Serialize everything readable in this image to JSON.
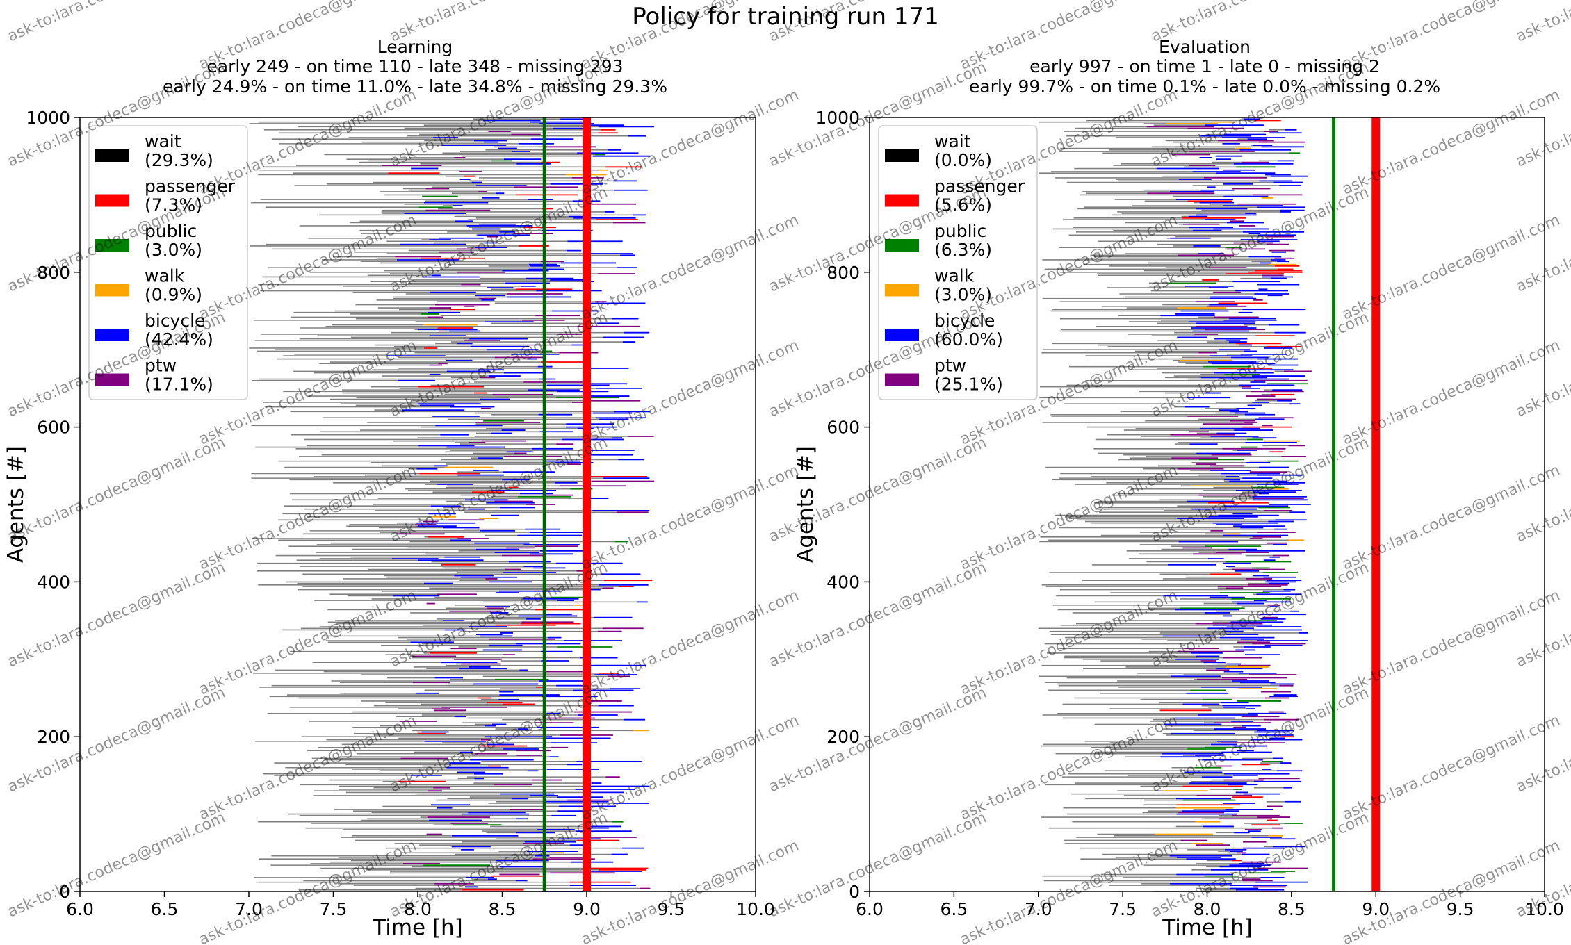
{
  "figure": {
    "title": "Policy for training run 171",
    "watermark": "ask-to:lara.codeca@gmail.com"
  },
  "chart_data": [
    {
      "type": "bar",
      "orientation": "horizontal-ranges",
      "title": "Learning",
      "subtitle_counts": "early 249 - on time 110 - late 348 - missing 293",
      "subtitle_percent": "early 24.9% - on time 11.0% - late 34.8% - missing 29.3%",
      "xlabel": "Time [h]",
      "ylabel": "Agents [#]",
      "xlim": [
        6.0,
        10.0
      ],
      "ylim": [
        0,
        1000
      ],
      "xticks": [
        "6.0",
        "6.5",
        "7.0",
        "7.5",
        "8.0",
        "8.5",
        "9.0",
        "9.5",
        "10.0"
      ],
      "yticks": [
        "0",
        "200",
        "400",
        "600",
        "800",
        "1000"
      ],
      "vertical_lines": [
        {
          "x": 8.75,
          "color": "#006400"
        },
        {
          "x": 9.0,
          "color": "#ff0000"
        }
      ],
      "legend_position": "top-left",
      "legend": [
        {
          "label": "wait",
          "pct": "(29.3%)",
          "color": "#000000"
        },
        {
          "label": "passenger",
          "pct": "(7.3%)",
          "color": "#ff0000"
        },
        {
          "label": "public",
          "pct": "(3.0%)",
          "color": "#008000"
        },
        {
          "label": "walk",
          "pct": "(0.9%)",
          "color": "#ffa500"
        },
        {
          "label": "bicycle",
          "pct": "(42.4%)",
          "color": "#0000ff"
        },
        {
          "label": "ptw",
          "pct": "(17.1%)",
          "color": "#800080"
        }
      ],
      "agent_trips": {
        "agents": 1000,
        "wait_color": "#808080",
        "start_range_h": [
          7.0,
          8.5
        ],
        "end_range_h": [
          8.1,
          9.4
        ],
        "mode_share": {
          "passenger": 0.073,
          "public": 0.03,
          "walk": 0.009,
          "bicycle": 0.424,
          "ptw": 0.171
        }
      }
    },
    {
      "type": "bar",
      "orientation": "horizontal-ranges",
      "title": "Evaluation",
      "subtitle_counts": "early 997 - on time 1 - late 0 - missing 2",
      "subtitle_percent": "early 99.7% - on time 0.1% - late 0.0% - missing 0.2%",
      "xlabel": "Time [h]",
      "ylabel": "Agents [#]",
      "xlim": [
        6.0,
        10.0
      ],
      "ylim": [
        0,
        1000
      ],
      "xticks": [
        "6.0",
        "6.5",
        "7.0",
        "7.5",
        "8.0",
        "8.5",
        "9.0",
        "9.5",
        "10.0"
      ],
      "yticks": [
        "0",
        "200",
        "400",
        "600",
        "800",
        "1000"
      ],
      "vertical_lines": [
        {
          "x": 8.75,
          "color": "#008000"
        },
        {
          "x": 9.0,
          "color": "#ff0000"
        }
      ],
      "legend_position": "top-left",
      "legend": [
        {
          "label": "wait",
          "pct": "(0.0%)",
          "color": "#000000"
        },
        {
          "label": "passenger",
          "pct": "(5.6%)",
          "color": "#ff0000"
        },
        {
          "label": "public",
          "pct": "(6.3%)",
          "color": "#008000"
        },
        {
          "label": "walk",
          "pct": "(3.0%)",
          "color": "#ffa500"
        },
        {
          "label": "bicycle",
          "pct": "(60.0%)",
          "color": "#0000ff"
        },
        {
          "label": "ptw",
          "pct": "(25.1%)",
          "color": "#800080"
        }
      ],
      "agent_trips": {
        "agents": 1000,
        "wait_color": "#808080",
        "start_range_h": [
          7.0,
          8.4
        ],
        "end_range_h": [
          8.0,
          8.6
        ],
        "mode_share": {
          "passenger": 0.056,
          "public": 0.063,
          "walk": 0.03,
          "bicycle": 0.6,
          "ptw": 0.251
        }
      }
    }
  ]
}
